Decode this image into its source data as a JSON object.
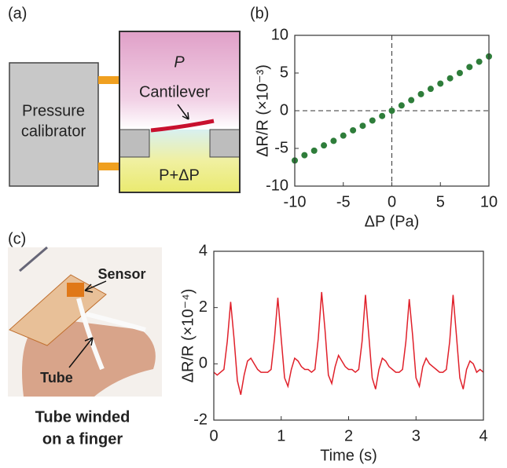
{
  "panel_labels": [
    "(a)",
    "(b)",
    "(c)"
  ],
  "diagram": {
    "calibrator": [
      "Pressure",
      "calibrator"
    ],
    "top_pressure": "P",
    "cantilever": "Cantilever",
    "bottom_pressure": "P+ΔP"
  },
  "photo": {
    "sensor": "Sensor",
    "tube": "Tube",
    "caption": [
      "Tube winded",
      "on a finger"
    ]
  },
  "chart_data": [
    {
      "type": "scatter",
      "xlabel": "ΔP (Pa)",
      "ylabel": "ΔR/R (×10⁻³)",
      "color": "#2e7d3a",
      "x": [
        -10,
        -9,
        -8,
        -7,
        -6,
        -5,
        -4,
        -3,
        -2,
        -1,
        0,
        1,
        2,
        3,
        4,
        5,
        6,
        7,
        8,
        9,
        10
      ],
      "values": [
        -6.6,
        -5.9,
        -5.3,
        -4.6,
        -4.0,
        -3.3,
        -2.6,
        -2.0,
        -1.3,
        -0.7,
        0,
        0.7,
        1.4,
        2.2,
        2.9,
        3.6,
        4.3,
        5.0,
        5.8,
        6.5,
        7.2
      ],
      "xlim": [
        -10,
        10
      ],
      "xticks": [
        -10,
        -5,
        0,
        5,
        10
      ],
      "ylim": [
        -10,
        10
      ],
      "yticks": [
        -10,
        -5,
        0,
        5,
        10
      ],
      "zero_lines": true
    },
    {
      "type": "line",
      "xlabel": "Time (s)",
      "ylabel": "ΔR/R (×10⁻⁴)",
      "color": "#e0202a",
      "x": [
        0,
        0.05,
        0.1,
        0.15,
        0.2,
        0.25,
        0.3,
        0.35,
        0.4,
        0.45,
        0.5,
        0.55,
        0.6,
        0.65,
        0.7,
        0.75,
        0.8,
        0.85,
        0.9,
        0.95,
        1,
        1.05,
        1.1,
        1.15,
        1.2,
        1.25,
        1.3,
        1.35,
        1.4,
        1.45,
        1.5,
        1.55,
        1.6,
        1.65,
        1.7,
        1.75,
        1.8,
        1.85,
        1.9,
        1.95,
        2,
        2.05,
        2.1,
        2.15,
        2.2,
        2.25,
        2.3,
        2.35,
        2.4,
        2.45,
        2.5,
        2.55,
        2.6,
        2.65,
        2.7,
        2.75,
        2.8,
        2.85,
        2.9,
        2.95,
        3,
        3.05,
        3.1,
        3.15,
        3.2,
        3.25,
        3.3,
        3.35,
        3.4,
        3.45,
        3.5,
        3.55,
        3.6,
        3.65,
        3.7,
        3.75,
        3.8,
        3.85,
        3.9,
        3.95,
        4
      ],
      "values": [
        -0.3,
        -0.4,
        -0.3,
        -0.2,
        0.8,
        2.2,
        0.9,
        -0.6,
        -1.1,
        -0.4,
        0.1,
        0.2,
        0.0,
        -0.2,
        -0.3,
        -0.3,
        -0.3,
        -0.2,
        0.9,
        2.35,
        0.9,
        -0.5,
        -0.8,
        -0.2,
        0.2,
        0.1,
        -0.1,
        -0.2,
        -0.2,
        -0.3,
        -0.2,
        0.9,
        2.55,
        1.2,
        -0.4,
        -0.7,
        -0.1,
        0.3,
        0.1,
        -0.1,
        -0.2,
        -0.2,
        -0.3,
        -0.2,
        0.8,
        2.45,
        1.0,
        -0.5,
        -0.9,
        -0.2,
        0.2,
        0.1,
        -0.1,
        -0.2,
        -0.3,
        -0.3,
        -0.2,
        0.8,
        2.3,
        1.0,
        -0.5,
        -0.8,
        -0.1,
        0.2,
        0.0,
        -0.1,
        -0.2,
        -0.3,
        -0.3,
        -0.2,
        0.8,
        2.45,
        1.0,
        -0.5,
        -0.9,
        -0.2,
        0.1,
        0.0,
        -0.3,
        -0.2,
        -0.3
      ],
      "xlim": [
        0,
        4
      ],
      "xticks": [
        0,
        1,
        2,
        3,
        4
      ],
      "ylim": [
        -2,
        4
      ],
      "yticks": [
        -2,
        0,
        2,
        4
      ],
      "zero_lines": false
    }
  ]
}
